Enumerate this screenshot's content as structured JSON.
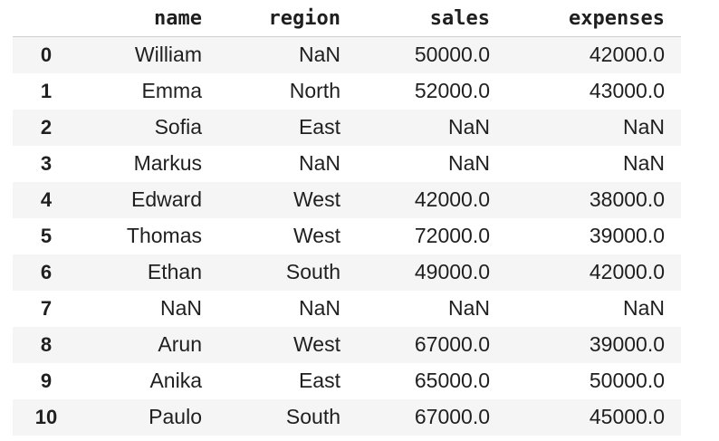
{
  "table": {
    "index_header": "",
    "columns": [
      "name",
      "region",
      "sales",
      "expenses"
    ],
    "rows": [
      {
        "index": "0",
        "cells": [
          "William",
          "NaN",
          "50000.0",
          "42000.0"
        ]
      },
      {
        "index": "1",
        "cells": [
          "Emma",
          "North",
          "52000.0",
          "43000.0"
        ]
      },
      {
        "index": "2",
        "cells": [
          "Sofia",
          "East",
          "NaN",
          "NaN"
        ]
      },
      {
        "index": "3",
        "cells": [
          "Markus",
          "NaN",
          "NaN",
          "NaN"
        ]
      },
      {
        "index": "4",
        "cells": [
          "Edward",
          "West",
          "42000.0",
          "38000.0"
        ]
      },
      {
        "index": "5",
        "cells": [
          "Thomas",
          "West",
          "72000.0",
          "39000.0"
        ]
      },
      {
        "index": "6",
        "cells": [
          "Ethan",
          "South",
          "49000.0",
          "42000.0"
        ]
      },
      {
        "index": "7",
        "cells": [
          "NaN",
          "NaN",
          "NaN",
          "NaN"
        ]
      },
      {
        "index": "8",
        "cells": [
          "Arun",
          "West",
          "67000.0",
          "39000.0"
        ]
      },
      {
        "index": "9",
        "cells": [
          "Anika",
          "East",
          "65000.0",
          "50000.0"
        ]
      },
      {
        "index": "10",
        "cells": [
          "Paulo",
          "South",
          "67000.0",
          "45000.0"
        ]
      }
    ]
  }
}
